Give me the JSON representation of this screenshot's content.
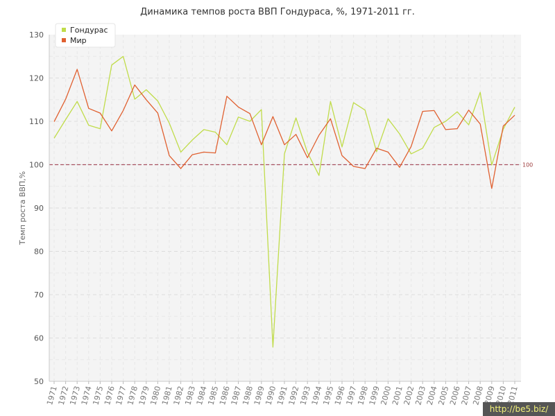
{
  "chart_data": {
    "type": "line",
    "title": "Динамика темпов роста ВВП Гондураса, %, 1971-2011 гг.",
    "xlabel": "",
    "ylabel": "Темп роста ВВП,%",
    "ylim": [
      50,
      130
    ],
    "yticks": [
      50,
      60,
      70,
      80,
      90,
      100,
      110,
      120,
      130
    ],
    "grid": true,
    "legend_position": "top-left",
    "categories": [
      "1971",
      "1972",
      "1973",
      "1974",
      "1975",
      "1976",
      "1977",
      "1978",
      "1979",
      "1980",
      "1981",
      "1982",
      "1983",
      "1984",
      "1985",
      "1986",
      "1987",
      "1988",
      "1989",
      "1990",
      "1991",
      "1992",
      "1993",
      "1994",
      "1995",
      "1996",
      "1997",
      "1998",
      "1999",
      "2000",
      "2001",
      "2002",
      "2003",
      "2004",
      "2005",
      "2006",
      "2007",
      "2008",
      "2009",
      "2010",
      "2011"
    ],
    "series": [
      {
        "name": "Гондурас",
        "color": "#c0dc4a",
        "values": [
          106.1,
          110.4,
          114.6,
          109.1,
          108.3,
          123.0,
          125.0,
          115.1,
          117.3,
          114.7,
          109.6,
          102.9,
          105.7,
          108.1,
          107.5,
          104.6,
          111.0,
          110.0,
          112.7,
          57.9,
          102.5,
          110.8,
          102.8,
          97.5,
          114.6,
          104.1,
          114.3,
          112.6,
          103.0,
          110.6,
          107.1,
          102.5,
          103.8,
          108.6,
          110.0,
          112.2,
          109.2,
          116.7,
          99.9,
          108.2,
          113.3
        ]
      },
      {
        "name": "Мир",
        "color": "#e06030",
        "values": [
          109.9,
          115.1,
          122.0,
          113.0,
          111.9,
          107.8,
          112.5,
          118.4,
          115.0,
          111.9,
          102.1,
          99.1,
          102.3,
          102.9,
          102.7,
          115.8,
          113.3,
          111.8,
          104.6,
          111.1,
          104.6,
          107.0,
          101.6,
          106.8,
          110.6,
          102.1,
          99.6,
          99.1,
          103.8,
          102.9,
          99.4,
          104.2,
          112.3,
          112.5,
          108.1,
          108.3,
          112.6,
          109.4,
          94.5,
          108.9,
          111.4
        ]
      }
    ],
    "reference_line": {
      "value": 100,
      "label": "100",
      "color": "#a85060"
    }
  },
  "watermark": "http://be5.biz/"
}
